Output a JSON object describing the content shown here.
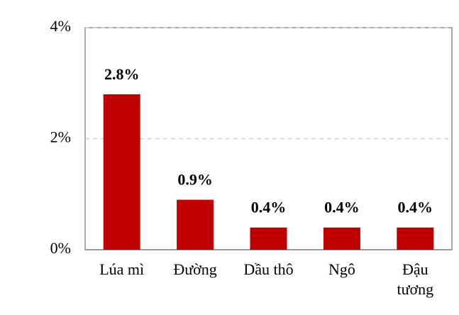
{
  "chart_data": {
    "type": "bar",
    "categories": [
      "Lúa mì",
      "Đường",
      "Dầu thô",
      "Ngô",
      "Đậu tương"
    ],
    "values": [
      2.8,
      0.9,
      0.4,
      0.4,
      0.4
    ],
    "value_labels": [
      "2.8%",
      "0.9%",
      "0.4%",
      "0.4%",
      "0.4%"
    ],
    "color": "#c00000",
    "ylim": [
      0,
      4
    ],
    "yticks": [
      {
        "value": 0,
        "label": "0%"
      },
      {
        "value": 2,
        "label": "2%"
      },
      {
        "value": 4,
        "label": "4%"
      }
    ],
    "grid": true
  }
}
